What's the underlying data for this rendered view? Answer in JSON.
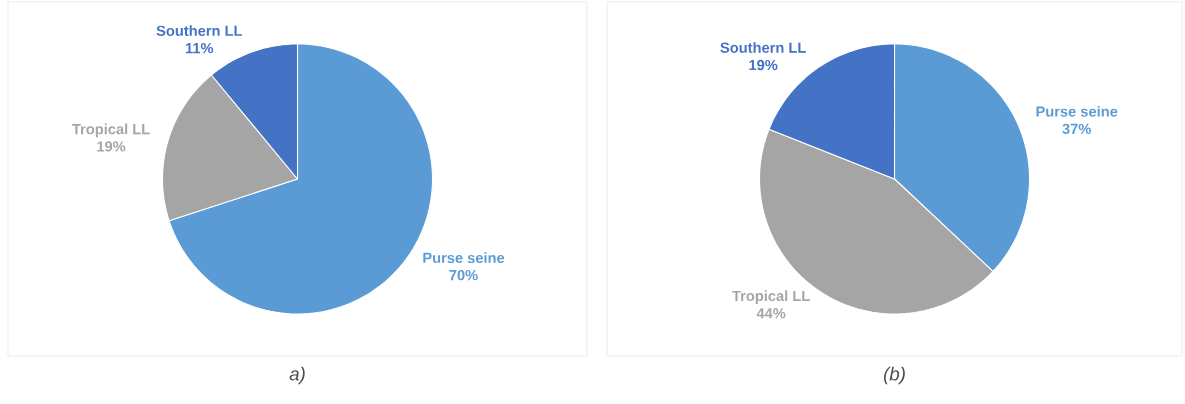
{
  "chart_data": [
    {
      "type": "pie",
      "title": "a)",
      "categories": [
        "Purse seine",
        "Tropical LL",
        "Southern LL"
      ],
      "values": [
        70,
        19,
        11
      ],
      "value_labels": [
        "70%",
        "19%",
        "11%"
      ],
      "colors": [
        "#5b9bd5",
        "#a5a5a5",
        "#4472c4"
      ]
    },
    {
      "type": "pie",
      "title": "(b)",
      "categories": [
        "Purse seine",
        "Tropical LL",
        "Southern LL"
      ],
      "values": [
        37,
        44,
        19
      ],
      "value_labels": [
        "37%",
        "44%",
        "19%"
      ],
      "colors": [
        "#5b9bd5",
        "#a5a5a5",
        "#4472c4"
      ]
    }
  ]
}
